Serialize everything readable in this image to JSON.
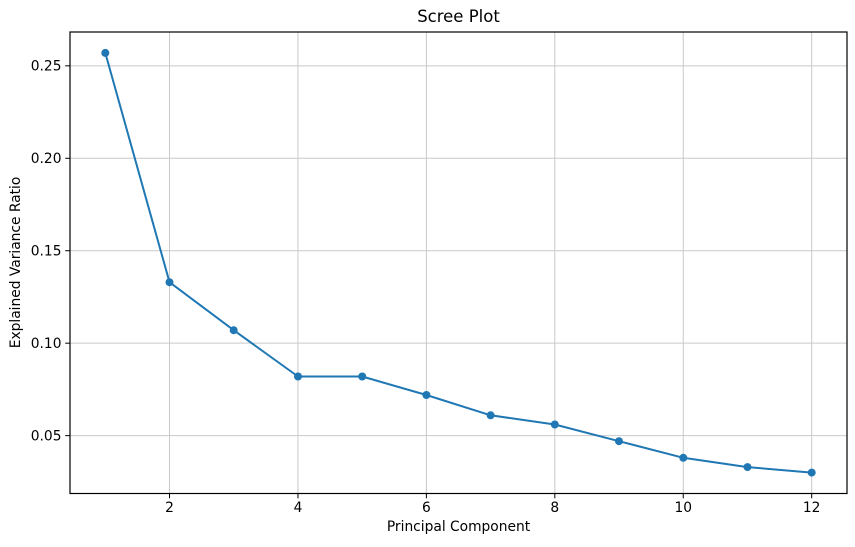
{
  "chart_data": {
    "type": "line",
    "title": "Scree Plot",
    "xlabel": "Principal Component",
    "ylabel": "Explained Variance Ratio",
    "x": [
      1,
      2,
      3,
      4,
      5,
      6,
      7,
      8,
      9,
      10,
      11,
      12
    ],
    "y": [
      0.257,
      0.133,
      0.107,
      0.082,
      0.082,
      0.072,
      0.061,
      0.056,
      0.047,
      0.038,
      0.033,
      0.03
    ],
    "xticks": [
      2,
      4,
      6,
      8,
      10,
      12
    ],
    "xtick_labels": [
      "2",
      "4",
      "6",
      "8",
      "10",
      "12"
    ],
    "yticks": [
      0.05,
      0.1,
      0.15,
      0.2,
      0.25
    ],
    "ytick_labels": [
      "0.05",
      "0.10",
      "0.15",
      "0.20",
      "0.25"
    ],
    "xlim": [
      0.45,
      12.55
    ],
    "ylim": [
      0.0187,
      0.2683
    ],
    "grid": true,
    "legend": "none",
    "line_color": "#1f77b4",
    "marker": "circle",
    "marker_color": "#1f77b4",
    "grid_color": "#c9c9c9",
    "background_color": "#ffffff"
  }
}
